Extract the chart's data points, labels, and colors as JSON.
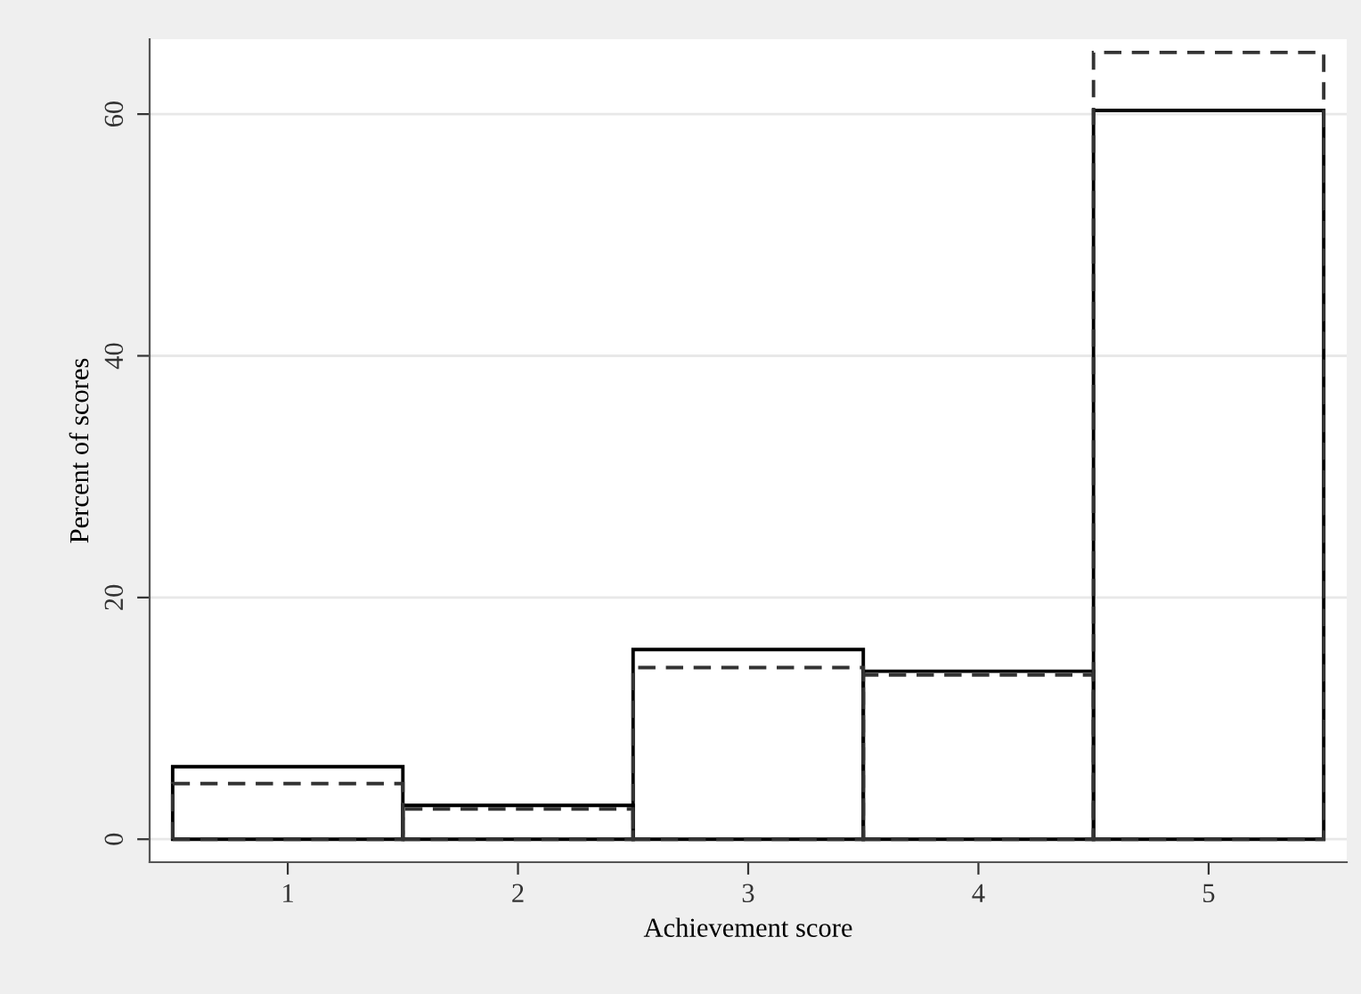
{
  "chart_data": {
    "type": "histogram",
    "xlabel": "Achievement score",
    "ylabel": "Percent of scores",
    "bins": [
      0.5,
      1.5,
      2.5,
      3.5,
      4.5,
      5.5
    ],
    "series": [
      {
        "color": "#000000",
        "line_style": "solid",
        "values": [
          6.0,
          2.8,
          15.7,
          13.9,
          60.3
        ]
      },
      {
        "color": "#333333",
        "line_style": "dashed",
        "values": [
          4.6,
          2.5,
          14.2,
          13.6,
          65.1
        ]
      }
    ],
    "xlim": [
      0.4,
      5.6
    ],
    "xticks": [
      1,
      2,
      3,
      4,
      5
    ],
    "ylim": [
      -1.9,
      66.2
    ],
    "yticks": [
      0,
      20,
      40,
      60
    ],
    "grid": "y"
  }
}
